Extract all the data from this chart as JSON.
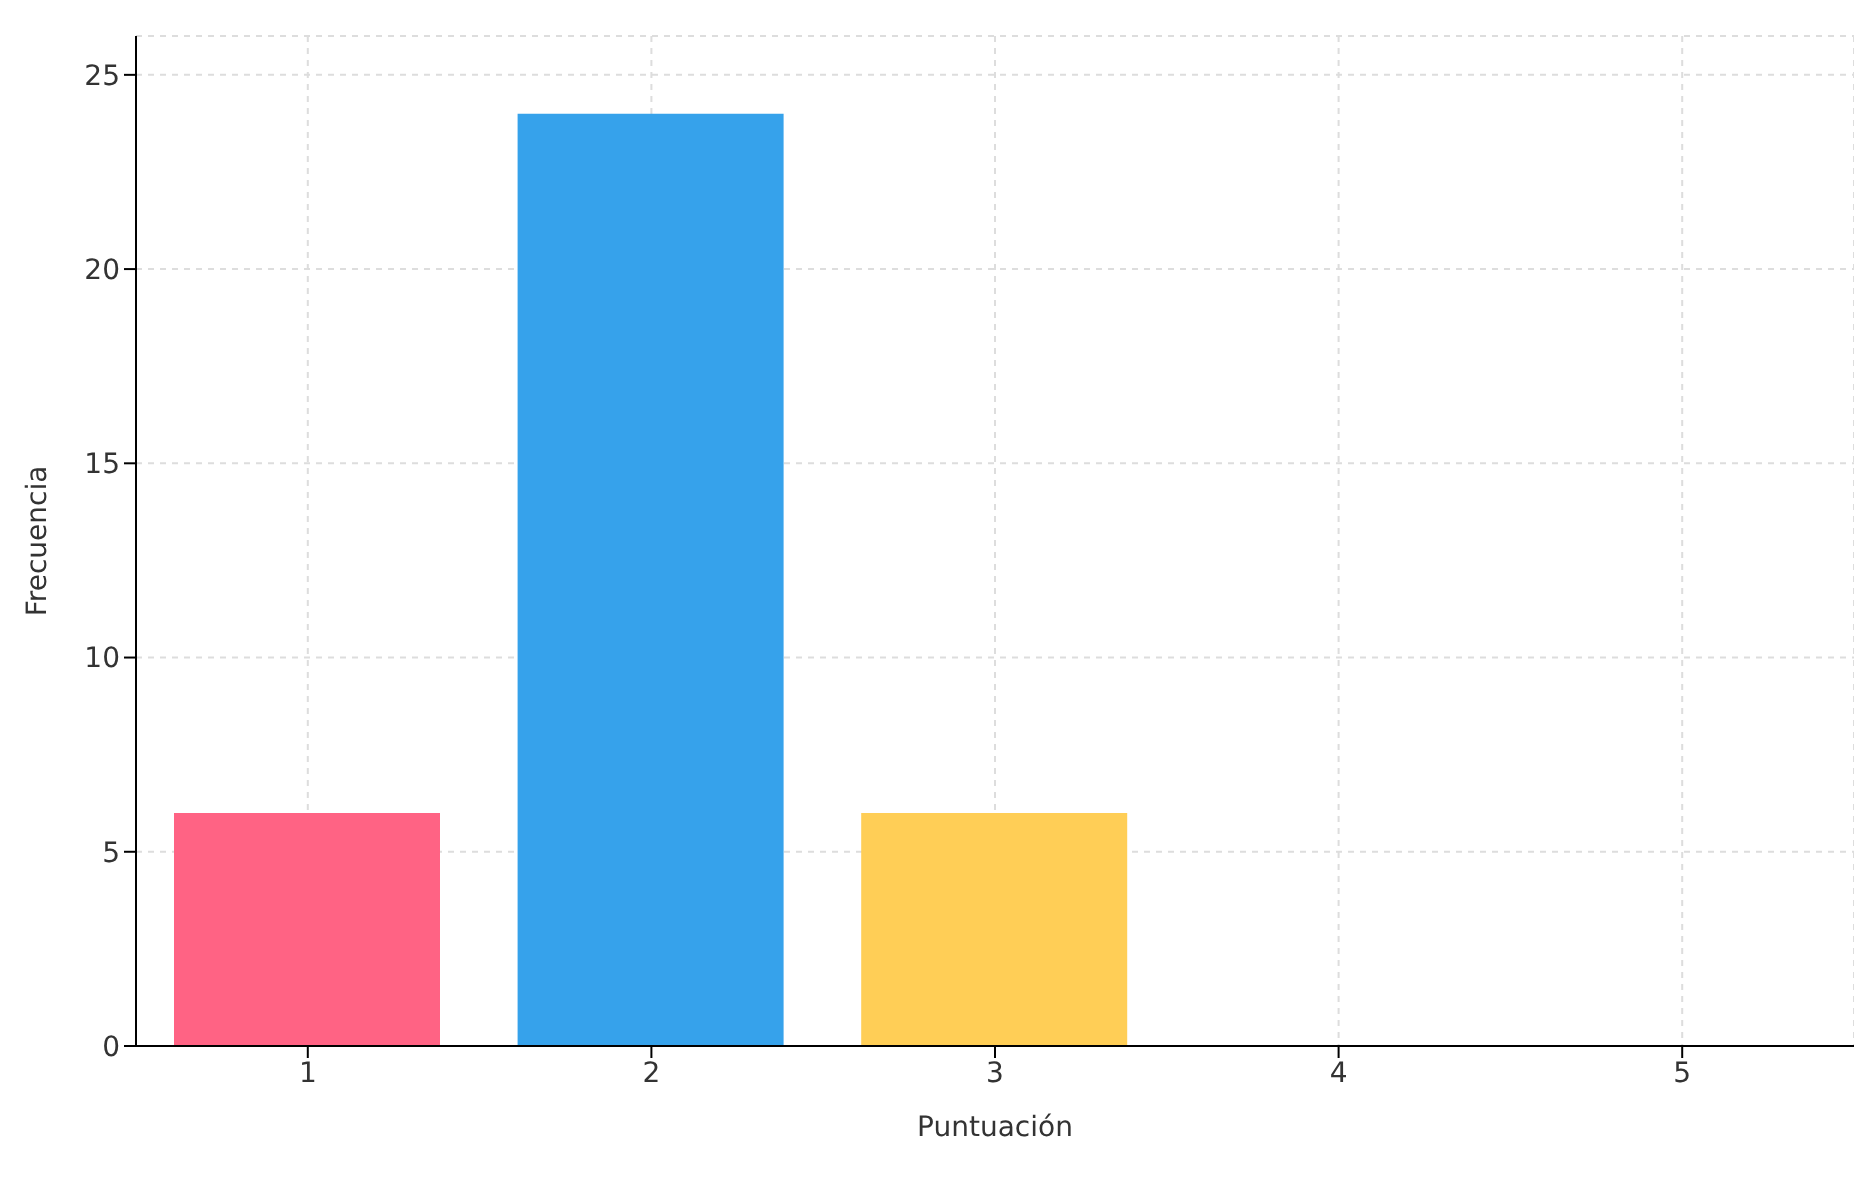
{
  "chart_data": {
    "type": "bar",
    "xlabel": "Puntuación",
    "ylabel": "Frecuencia",
    "categories": [
      "1",
      "2",
      "3",
      "4",
      "5"
    ],
    "values": [
      6,
      24,
      6,
      0,
      0
    ],
    "colors": [
      "#ff6384",
      "#36a2eb",
      "#ffce56",
      "#4bc0c0",
      "#9966ff"
    ],
    "ylim": [
      0,
      26
    ],
    "yticks": [
      0,
      5,
      10,
      15,
      20,
      25
    ],
    "grid": true
  }
}
